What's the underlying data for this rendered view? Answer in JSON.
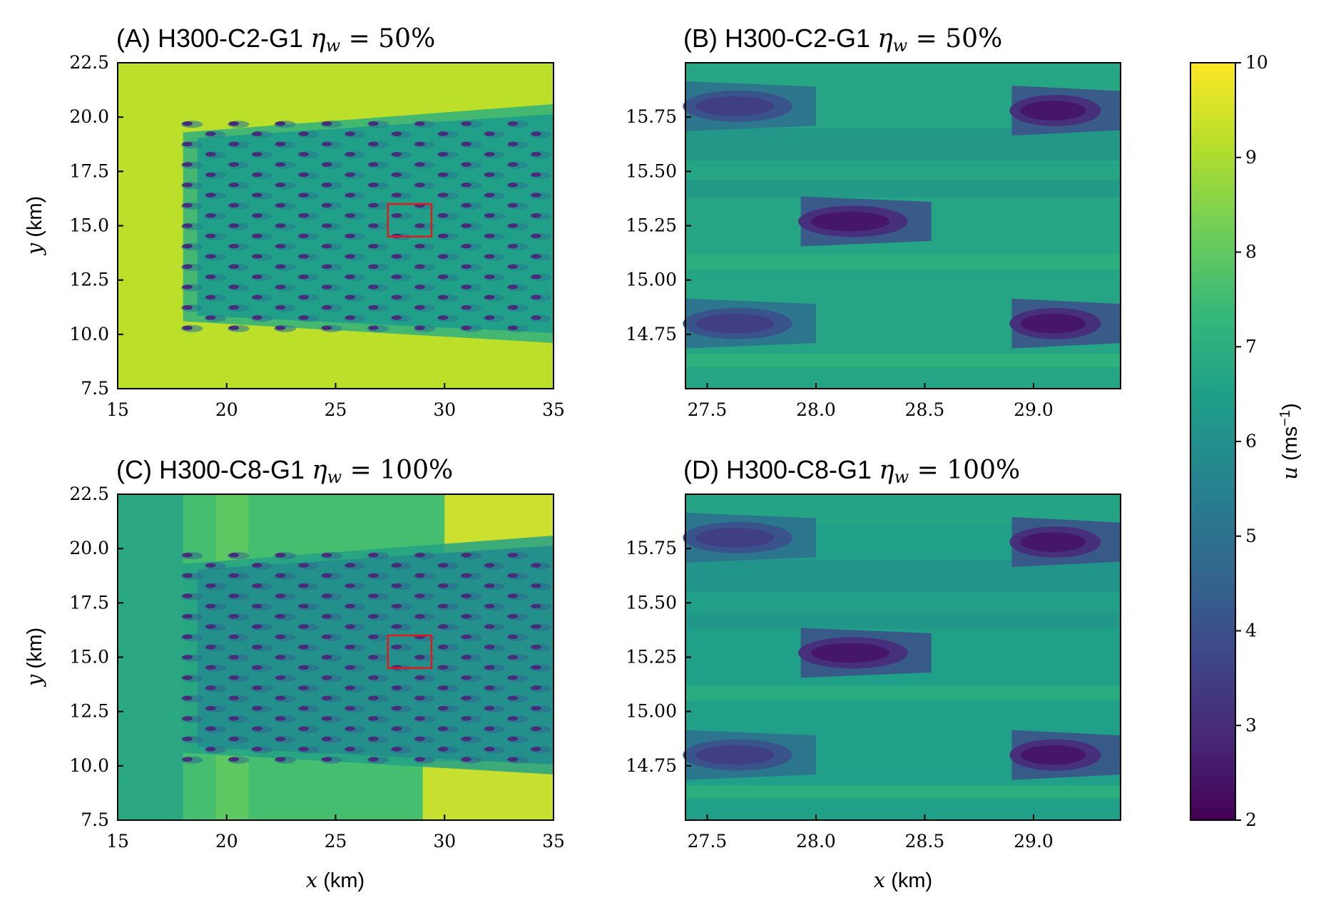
{
  "colors": {
    "viridis": [
      "#440154",
      "#482878",
      "#3e4989",
      "#31688e",
      "#26828e",
      "#1f9e89",
      "#35b779",
      "#6ece58",
      "#b5de2b",
      "#fde725"
    ],
    "box": "#e31a1c"
  },
  "chart_data": [
    {
      "type": "heatmap",
      "panel": "A",
      "title": "(A) H300-C2-G1",
      "title_math": "η",
      "title_sub": "w",
      "title_value": " = 50%",
      "xlabel_var": "x",
      "xlabel_unit": " (km)",
      "xlabel_shown": false,
      "ylabel_var": "y",
      "ylabel_unit": " (km)",
      "xlim": [
        15,
        35
      ],
      "ylim": [
        7.5,
        22.5
      ],
      "xticks": [
        "15",
        "20",
        "25",
        "30",
        "35"
      ],
      "yticks": [
        "7.5",
        "10.0",
        "12.5",
        "15.0",
        "17.5",
        "20.0",
        "22.5"
      ],
      "field": {
        "freestream_speed": 9.2,
        "farm_speed": 6.5,
        "wake_min_speed": 3.0,
        "farm_x_range": [
          18,
          34
        ],
        "farm_y_range": [
          10.3,
          19.7
        ],
        "rows": 11,
        "columns": 16,
        "downstream_recovery": false
      },
      "highlight_box": {
        "x": [
          27.4,
          29.4
        ],
        "y": [
          14.5,
          16.0
        ]
      }
    },
    {
      "type": "heatmap",
      "panel": "B",
      "title": "(B) H300-C2-G1",
      "title_math": "η",
      "title_sub": "w",
      "title_value": " = 50%",
      "xlabel_var": "x",
      "xlabel_unit": " (km)",
      "xlabel_shown": false,
      "ylabel_var": "",
      "ylabel_unit": "",
      "xlim": [
        27.4,
        29.4
      ],
      "ylim": [
        14.5,
        16.0
      ],
      "xticks": [
        "27.5",
        "28.0",
        "28.5",
        "29.0"
      ],
      "yticks": [
        "14.75",
        "15.00",
        "15.25",
        "15.50",
        "15.75"
      ],
      "field": {
        "background_speed": 6.7,
        "turbines": [
          {
            "x": 27.4,
            "y": 14.8,
            "min_speed": 3.5
          },
          {
            "x": 27.4,
            "y": 15.8,
            "min_speed": 3.5
          },
          {
            "x": 27.93,
            "y": 15.27,
            "min_speed": 2.5
          },
          {
            "x": 28.9,
            "y": 14.8,
            "min_speed": 2.5
          },
          {
            "x": 28.9,
            "y": 15.78,
            "min_speed": 2.5
          }
        ]
      }
    },
    {
      "type": "heatmap",
      "panel": "C",
      "title": "(C) H300-C8-G1",
      "title_math": "η",
      "title_sub": "w",
      "title_value": " = 100%",
      "xlabel_var": "x",
      "xlabel_unit": " (km)",
      "xlabel_shown": true,
      "ylabel_var": "y",
      "ylabel_unit": " (km)",
      "xlim": [
        15,
        35
      ],
      "ylim": [
        7.5,
        22.5
      ],
      "xticks": [
        "15",
        "20",
        "25",
        "30",
        "35"
      ],
      "yticks": [
        "7.5",
        "10.0",
        "12.5",
        "15.0",
        "17.5",
        "20.0",
        "22.5"
      ],
      "field": {
        "freestream_speed": 7.6,
        "farm_speed": 6.0,
        "wake_min_speed": 3.0,
        "farm_x_range": [
          18,
          34
        ],
        "farm_y_range": [
          10.3,
          19.7
        ],
        "rows": 11,
        "columns": 16,
        "downstream_recovery": true
      },
      "highlight_box": {
        "x": [
          27.4,
          29.4
        ],
        "y": [
          14.5,
          16.0
        ]
      }
    },
    {
      "type": "heatmap",
      "panel": "D",
      "title": "(D) H300-C8-G1",
      "title_math": "η",
      "title_sub": "w",
      "title_value": " = 100%",
      "xlabel_var": "x",
      "xlabel_unit": " (km)",
      "xlabel_shown": true,
      "ylabel_var": "",
      "ylabel_unit": "",
      "xlim": [
        27.4,
        29.4
      ],
      "ylim": [
        14.5,
        16.0
      ],
      "xticks": [
        "27.5",
        "28.0",
        "28.5",
        "29.0"
      ],
      "yticks": [
        "14.75",
        "15.00",
        "15.25",
        "15.50",
        "15.75"
      ],
      "field": {
        "background_speed": 6.5,
        "turbines": [
          {
            "x": 27.4,
            "y": 14.8,
            "min_speed": 3.5
          },
          {
            "x": 27.4,
            "y": 15.8,
            "min_speed": 3.5
          },
          {
            "x": 27.93,
            "y": 15.27,
            "min_speed": 2.5
          },
          {
            "x": 28.9,
            "y": 14.8,
            "min_speed": 2.5
          },
          {
            "x": 28.9,
            "y": 15.78,
            "min_speed": 2.5
          }
        ]
      }
    }
  ],
  "colorbar": {
    "label_var": "u",
    "label_unit": " (ms",
    "label_exp": "−1",
    "label_close": ")",
    "min": 2,
    "max": 10,
    "ticks": [
      "2",
      "3",
      "4",
      "5",
      "6",
      "7",
      "8",
      "9",
      "10"
    ]
  }
}
